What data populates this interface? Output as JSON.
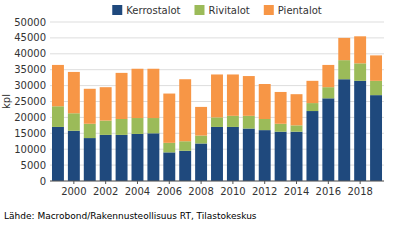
{
  "chart_data": {
    "type": "bar",
    "stacked": true,
    "y_label": "kpl",
    "source": "Lähde: Macrobond/Rakennusteollisuus RT, Tilastokeskus",
    "categories": [
      null,
      "2000",
      null,
      "2002",
      null,
      "2004",
      null,
      "2006",
      null,
      "2008",
      null,
      "2010",
      null,
      "2012",
      null,
      "2014",
      null,
      "2016",
      null,
      "2018",
      null
    ],
    "series": [
      {
        "name": "Kerrostalot",
        "color": "#1f497d",
        "values": [
          17000,
          15800,
          13500,
          14500,
          14500,
          14800,
          15000,
          9000,
          9500,
          11800,
          17000,
          17000,
          16500,
          16000,
          15500,
          15500,
          22000,
          26000,
          32000,
          31500,
          27000
        ]
      },
      {
        "name": "Rivitalot",
        "color": "#9bbb59",
        "values": [
          6500,
          5500,
          4500,
          4500,
          5000,
          5000,
          4800,
          3000,
          3000,
          2500,
          3000,
          3500,
          4000,
          3500,
          2500,
          2000,
          2500,
          3500,
          6000,
          5500,
          4500
        ]
      },
      {
        "name": "Pientalot",
        "color": "#f79646",
        "values": [
          13000,
          13000,
          11000,
          10500,
          14500,
          15500,
          15500,
          15500,
          19500,
          9000,
          13500,
          13000,
          12500,
          11000,
          10000,
          9800,
          7000,
          7000,
          7000,
          8500,
          8000
        ]
      }
    ],
    "ylim": [
      0,
      50000
    ],
    "yticks": [
      0,
      5000,
      10000,
      15000,
      20000,
      25000,
      30000,
      35000,
      40000,
      45000,
      50000
    ],
    "grid": true,
    "legend": "top"
  }
}
